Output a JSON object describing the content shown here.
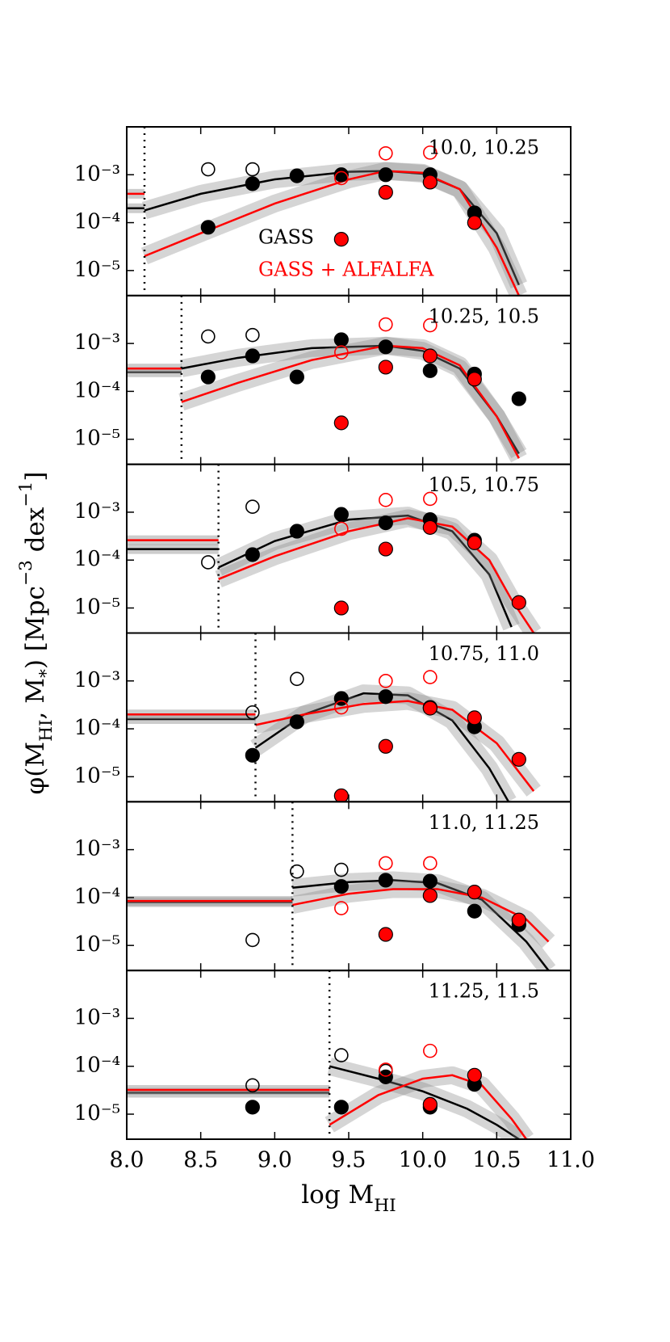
{
  "chart_data": [
    {
      "type": "scatter",
      "label": "10.0, 10.25",
      "xlim": [
        8,
        11
      ],
      "ylim": [
        3e-06,
        0.01
      ],
      "yscale": "log",
      "yticks": [
        {
          "value": 1e-05,
          "label": "10⁻⁵"
        },
        {
          "value": 0.0001,
          "label": "10⁻⁴"
        },
        {
          "value": 0.001,
          "label": "10⁻³"
        }
      ],
      "ylabel": [
        {
          "text": "φ(M"
        },
        {
          "text": "HI",
          "shift": "sub"
        },
        {
          "text": ", M"
        },
        {
          "text": "*",
          "shift": "sub"
        },
        {
          "text": ") [Mpc"
        },
        {
          "text": "−3",
          "shift": "super"
        },
        {
          "text": " dex"
        },
        {
          "text": "−1",
          "shift": "super"
        },
        {
          "text": "]"
        }
      ],
      "legend": [
        {
          "label": "GASS",
          "color": "#000000"
        },
        {
          "label": "GASS + ALFALFA",
          "color": "#ff0000"
        }
      ],
      "cut": 8.12,
      "floor": [
        {
          "color": "#000000",
          "value": 0.0002
        },
        {
          "color": "#ff0000",
          "value": 0.0004
        }
      ],
      "series": [
        {
          "style": "filled",
          "color": "#000000",
          "x": [
            8.55,
            8.85,
            9.15,
            9.45,
            9.75,
            10.05,
            10.35
          ],
          "values": [
            8e-05,
            0.00065,
            0.00095,
            0.001,
            0.001,
            0.001,
            0.00016
          ]
        },
        {
          "style": "open",
          "color": "#000000",
          "x": [
            8.55,
            8.85
          ],
          "values": [
            0.0013,
            0.0013
          ]
        },
        {
          "style": "filled",
          "color": "#ff0000",
          "x": [
            9.45,
            9.75,
            10.05,
            10.35
          ],
          "values": [
            4.5e-05,
            0.00043,
            0.0007,
            0.0001
          ]
        },
        {
          "style": "open",
          "color": "#ff0000",
          "x": [
            9.45,
            9.75,
            10.05
          ],
          "values": [
            0.00085,
            0.0028,
            0.0029
          ]
        }
      ],
      "fits": [
        {
          "color": "#000000",
          "x": [
            8.12,
            8.5,
            9.0,
            9.5,
            9.75,
            10.0,
            10.25,
            10.5,
            10.65
          ],
          "values": [
            0.00018,
            0.0004,
            0.0008,
            0.00115,
            0.0012,
            0.00105,
            0.0005,
            6e-05,
            5e-06
          ]
        },
        {
          "color": "#ff0000",
          "x": [
            8.12,
            8.5,
            9.0,
            9.5,
            9.75,
            10.0,
            10.25,
            10.5,
            10.65
          ],
          "values": [
            2e-05,
            6e-05,
            0.00025,
            0.0008,
            0.0012,
            0.0011,
            0.0005,
            3e-05,
            3e-06
          ]
        }
      ]
    },
    {
      "type": "scatter",
      "label": "10.25, 10.5",
      "xlim": [
        8,
        11
      ],
      "ylim": [
        3e-06,
        0.01
      ],
      "yscale": "log",
      "yticks": [
        {
          "value": 1e-05,
          "label": "10⁻⁵"
        },
        {
          "value": 0.0001,
          "label": "10⁻⁴"
        },
        {
          "value": 0.001,
          "label": "10⁻³"
        }
      ],
      "cut": 8.37,
      "floor": [
        {
          "color": "#000000",
          "value": 0.00025
        },
        {
          "color": "#ff0000",
          "value": 0.0003
        }
      ],
      "series": [
        {
          "style": "filled",
          "color": "#000000",
          "x": [
            8.55,
            8.85,
            9.15,
            9.45,
            9.75,
            10.05,
            10.35,
            10.65
          ],
          "values": [
            0.0002,
            0.00055,
            0.0002,
            0.0012,
            0.00085,
            0.00027,
            0.00023,
            7e-05
          ]
        },
        {
          "style": "open",
          "color": "#000000",
          "x": [
            8.55,
            8.85
          ],
          "values": [
            0.0014,
            0.0015
          ]
        },
        {
          "style": "filled",
          "color": "#ff0000",
          "x": [
            9.45,
            9.75,
            10.05,
            10.35
          ],
          "values": [
            2.2e-05,
            0.00032,
            0.00055,
            0.00018
          ]
        },
        {
          "style": "open",
          "color": "#ff0000",
          "x": [
            9.45,
            9.75,
            10.05
          ],
          "values": [
            0.00065,
            0.0025,
            0.0024
          ]
        }
      ],
      "fits": [
        {
          "color": "#000000",
          "x": [
            8.37,
            8.75,
            9.25,
            9.75,
            10.0,
            10.25,
            10.5,
            10.65
          ],
          "values": [
            0.0003,
            0.0005,
            0.0008,
            0.0009,
            0.0007,
            0.0003,
            3e-05,
            5e-06
          ]
        },
        {
          "color": "#ff0000",
          "x": [
            8.37,
            8.75,
            9.25,
            9.75,
            10.0,
            10.25,
            10.5,
            10.65
          ],
          "values": [
            6e-05,
            0.00015,
            0.00045,
            0.0009,
            0.0008,
            0.00035,
            3e-05,
            4e-06
          ]
        }
      ]
    },
    {
      "type": "scatter",
      "label": "10.5, 10.75",
      "xlim": [
        8,
        11
      ],
      "ylim": [
        3e-06,
        0.01
      ],
      "yscale": "log",
      "yticks": [
        {
          "value": 1e-05,
          "label": "10⁻⁵"
        },
        {
          "value": 0.0001,
          "label": "10⁻⁴"
        },
        {
          "value": 0.001,
          "label": "10⁻³"
        }
      ],
      "cut": 8.62,
      "floor": [
        {
          "color": "#000000",
          "value": 0.00017
        },
        {
          "color": "#ff0000",
          "value": 0.00026
        }
      ],
      "series": [
        {
          "style": "filled",
          "color": "#000000",
          "x": [
            8.85,
            9.15,
            9.45,
            9.75,
            10.05,
            10.35
          ],
          "values": [
            0.00013,
            0.0004,
            0.0009,
            0.0006,
            0.0007,
            0.00026
          ]
        },
        {
          "style": "open",
          "color": "#000000",
          "x": [
            8.55,
            8.85
          ],
          "values": [
            9e-05,
            0.0013
          ]
        },
        {
          "style": "filled",
          "color": "#ff0000",
          "x": [
            9.45,
            9.75,
            10.05,
            10.35,
            10.65
          ],
          "values": [
            1e-05,
            0.00017,
            0.00048,
            0.00023,
            1.3e-05
          ]
        },
        {
          "style": "open",
          "color": "#ff0000",
          "x": [
            9.45,
            9.75,
            10.05
          ],
          "values": [
            0.00045,
            0.0018,
            0.0019
          ]
        }
      ],
      "fits": [
        {
          "color": "#000000",
          "x": [
            8.62,
            9.0,
            9.5,
            9.9,
            10.2,
            10.45,
            10.6
          ],
          "values": [
            7e-05,
            0.00025,
            0.0007,
            0.00085,
            0.0004,
            5e-05,
            4e-06
          ]
        },
        {
          "color": "#ff0000",
          "x": [
            8.62,
            9.0,
            9.5,
            9.9,
            10.2,
            10.45,
            10.6,
            10.75
          ],
          "values": [
            4e-05,
            0.00012,
            0.0004,
            0.00075,
            0.0005,
            0.0001,
            1.5e-05,
            3e-06
          ]
        }
      ]
    },
    {
      "type": "scatter",
      "label": "10.75, 11.0",
      "xlim": [
        8,
        11
      ],
      "ylim": [
        3e-06,
        0.01
      ],
      "yscale": "log",
      "yticks": [
        {
          "value": 1e-05,
          "label": "10⁻⁵"
        },
        {
          "value": 0.0001,
          "label": "10⁻⁴"
        },
        {
          "value": 0.001,
          "label": "10⁻³"
        }
      ],
      "cut": 8.87,
      "floor": [
        {
          "color": "#000000",
          "value": 0.00016
        },
        {
          "color": "#ff0000",
          "value": 0.0002
        }
      ],
      "series": [
        {
          "style": "filled",
          "color": "#000000",
          "x": [
            8.85,
            9.15,
            9.45,
            9.75,
            10.05,
            10.35
          ],
          "values": [
            2.8e-05,
            0.00014,
            0.00043,
            0.00047,
            0.00028,
            0.00011
          ]
        },
        {
          "style": "open",
          "color": "#000000",
          "x": [
            8.85,
            9.15
          ],
          "values": [
            0.00022,
            0.0011
          ]
        },
        {
          "style": "filled",
          "color": "#ff0000",
          "x": [
            9.45,
            9.75,
            10.05,
            10.35,
            10.65
          ],
          "values": [
            4e-06,
            4.3e-05,
            0.00027,
            0.00017,
            2.3e-05
          ]
        },
        {
          "style": "open",
          "color": "#ff0000",
          "x": [
            9.45,
            9.75,
            10.05
          ],
          "values": [
            0.00028,
            0.001,
            0.0012
          ]
        }
      ],
      "fits": [
        {
          "color": "#000000",
          "x": [
            8.87,
            9.2,
            9.6,
            9.9,
            10.2,
            10.45,
            10.58
          ],
          "values": [
            4e-05,
            0.0002,
            0.00055,
            0.0005,
            0.00015,
            1.5e-05,
            3e-06
          ]
        },
        {
          "color": "#ff0000",
          "x": [
            8.87,
            9.2,
            9.6,
            9.9,
            10.2,
            10.5,
            10.75
          ],
          "values": [
            0.00012,
            0.0002,
            0.00033,
            0.00038,
            0.00025,
            5e-05,
            5e-06
          ]
        }
      ]
    },
    {
      "type": "scatter",
      "label": "11.0, 11.25",
      "xlim": [
        8,
        11
      ],
      "ylim": [
        3e-06,
        0.01
      ],
      "yscale": "log",
      "yticks": [
        {
          "value": 1e-05,
          "label": "10⁻⁵"
        },
        {
          "value": 0.0001,
          "label": "10⁻⁴"
        },
        {
          "value": 0.001,
          "label": "10⁻³"
        }
      ],
      "cut": 9.12,
      "floor": [
        {
          "color": "#000000",
          "value": 8e-05
        },
        {
          "color": "#ff0000",
          "value": 8.5e-05
        }
      ],
      "series": [
        {
          "style": "filled",
          "color": "#000000",
          "x": [
            9.45,
            9.75,
            10.05,
            10.35,
            10.65
          ],
          "values": [
            0.00017,
            0.00023,
            0.00022,
            5.2e-05,
            2.7e-05
          ]
        },
        {
          "style": "open",
          "color": "#000000",
          "x": [
            8.85,
            9.15,
            9.45
          ],
          "values": [
            1.3e-05,
            0.00035,
            0.00038
          ]
        },
        {
          "style": "filled",
          "color": "#ff0000",
          "x": [
            9.75,
            10.05,
            10.35,
            10.65
          ],
          "values": [
            1.7e-05,
            0.00011,
            0.00013,
            3.4e-05
          ]
        },
        {
          "style": "open",
          "color": "#ff0000",
          "x": [
            9.45,
            9.75,
            10.05
          ],
          "values": [
            6e-05,
            0.00052,
            0.00052
          ]
        }
      ],
      "fits": [
        {
          "color": "#000000",
          "x": [
            9.12,
            9.5,
            9.8,
            10.1,
            10.4,
            10.7,
            10.85
          ],
          "values": [
            0.00016,
            0.00021,
            0.00023,
            0.0002,
            9e-05,
            1.2e-05,
            3e-06
          ]
        },
        {
          "color": "#ff0000",
          "x": [
            9.12,
            9.5,
            9.8,
            10.1,
            10.4,
            10.7,
            10.85
          ],
          "values": [
            7e-05,
            0.00012,
            0.00015,
            0.00015,
            0.0001,
            3.5e-05,
            1.2e-05
          ]
        }
      ]
    },
    {
      "type": "scatter",
      "label": "11.25, 11.5",
      "xlim": [
        8,
        11
      ],
      "ylim": [
        3e-06,
        0.01
      ],
      "yscale": "log",
      "yticks": [
        {
          "value": 1e-05,
          "label": "10⁻⁵"
        },
        {
          "value": 0.0001,
          "label": "10⁻⁴"
        },
        {
          "value": 0.001,
          "label": "10⁻³"
        }
      ],
      "xticks": [
        {
          "value": 8,
          "label": "8.0"
        },
        8.5,
        {
          "value": 9,
          "label": "9.0"
        },
        9.5,
        {
          "value": 10,
          "label": "10.0"
        },
        10.5,
        {
          "value": 11,
          "label": "11.0"
        }
      ],
      "xlabel": [
        {
          "text": "log M"
        },
        {
          "text": "HI",
          "shift": "sub"
        }
      ],
      "cut": 9.37,
      "floor": [
        {
          "color": "#000000",
          "value": 2.8e-05
        },
        {
          "color": "#ff0000",
          "value": 3.2e-05
        }
      ],
      "series": [
        {
          "style": "filled",
          "color": "#000000",
          "x": [
            8.85,
            9.45,
            9.75,
            10.05,
            10.35
          ],
          "values": [
            1.4e-05,
            1.4e-05,
            6e-05,
            1.4e-05,
            4.2e-05
          ]
        },
        {
          "style": "open",
          "color": "#000000",
          "x": [
            8.85,
            9.45,
            9.75
          ],
          "values": [
            4e-05,
            0.00017,
            8e-05
          ]
        },
        {
          "style": "filled",
          "color": "#ff0000",
          "x": [
            10.05,
            10.35
          ],
          "values": [
            1.6e-05,
            6.5e-05
          ]
        },
        {
          "style": "open",
          "color": "#ff0000",
          "x": [
            9.75,
            10.05
          ],
          "values": [
            8.5e-05,
            0.00021
          ]
        }
      ],
      "fits": [
        {
          "color": "#000000",
          "x": [
            9.37,
            9.7,
            10.0,
            10.3,
            10.5,
            10.65
          ],
          "values": [
            0.0001,
            5.5e-05,
            3e-05,
            1.3e-05,
            6e-06,
            3e-06
          ]
        },
        {
          "color": "#ff0000",
          "x": [
            9.37,
            9.7,
            10.0,
            10.2,
            10.4,
            10.6,
            10.7
          ],
          "values": [
            6e-06,
            2.5e-05,
            5.5e-05,
            6.5e-05,
            4e-05,
            8e-06,
            3e-06
          ]
        }
      ]
    }
  ]
}
